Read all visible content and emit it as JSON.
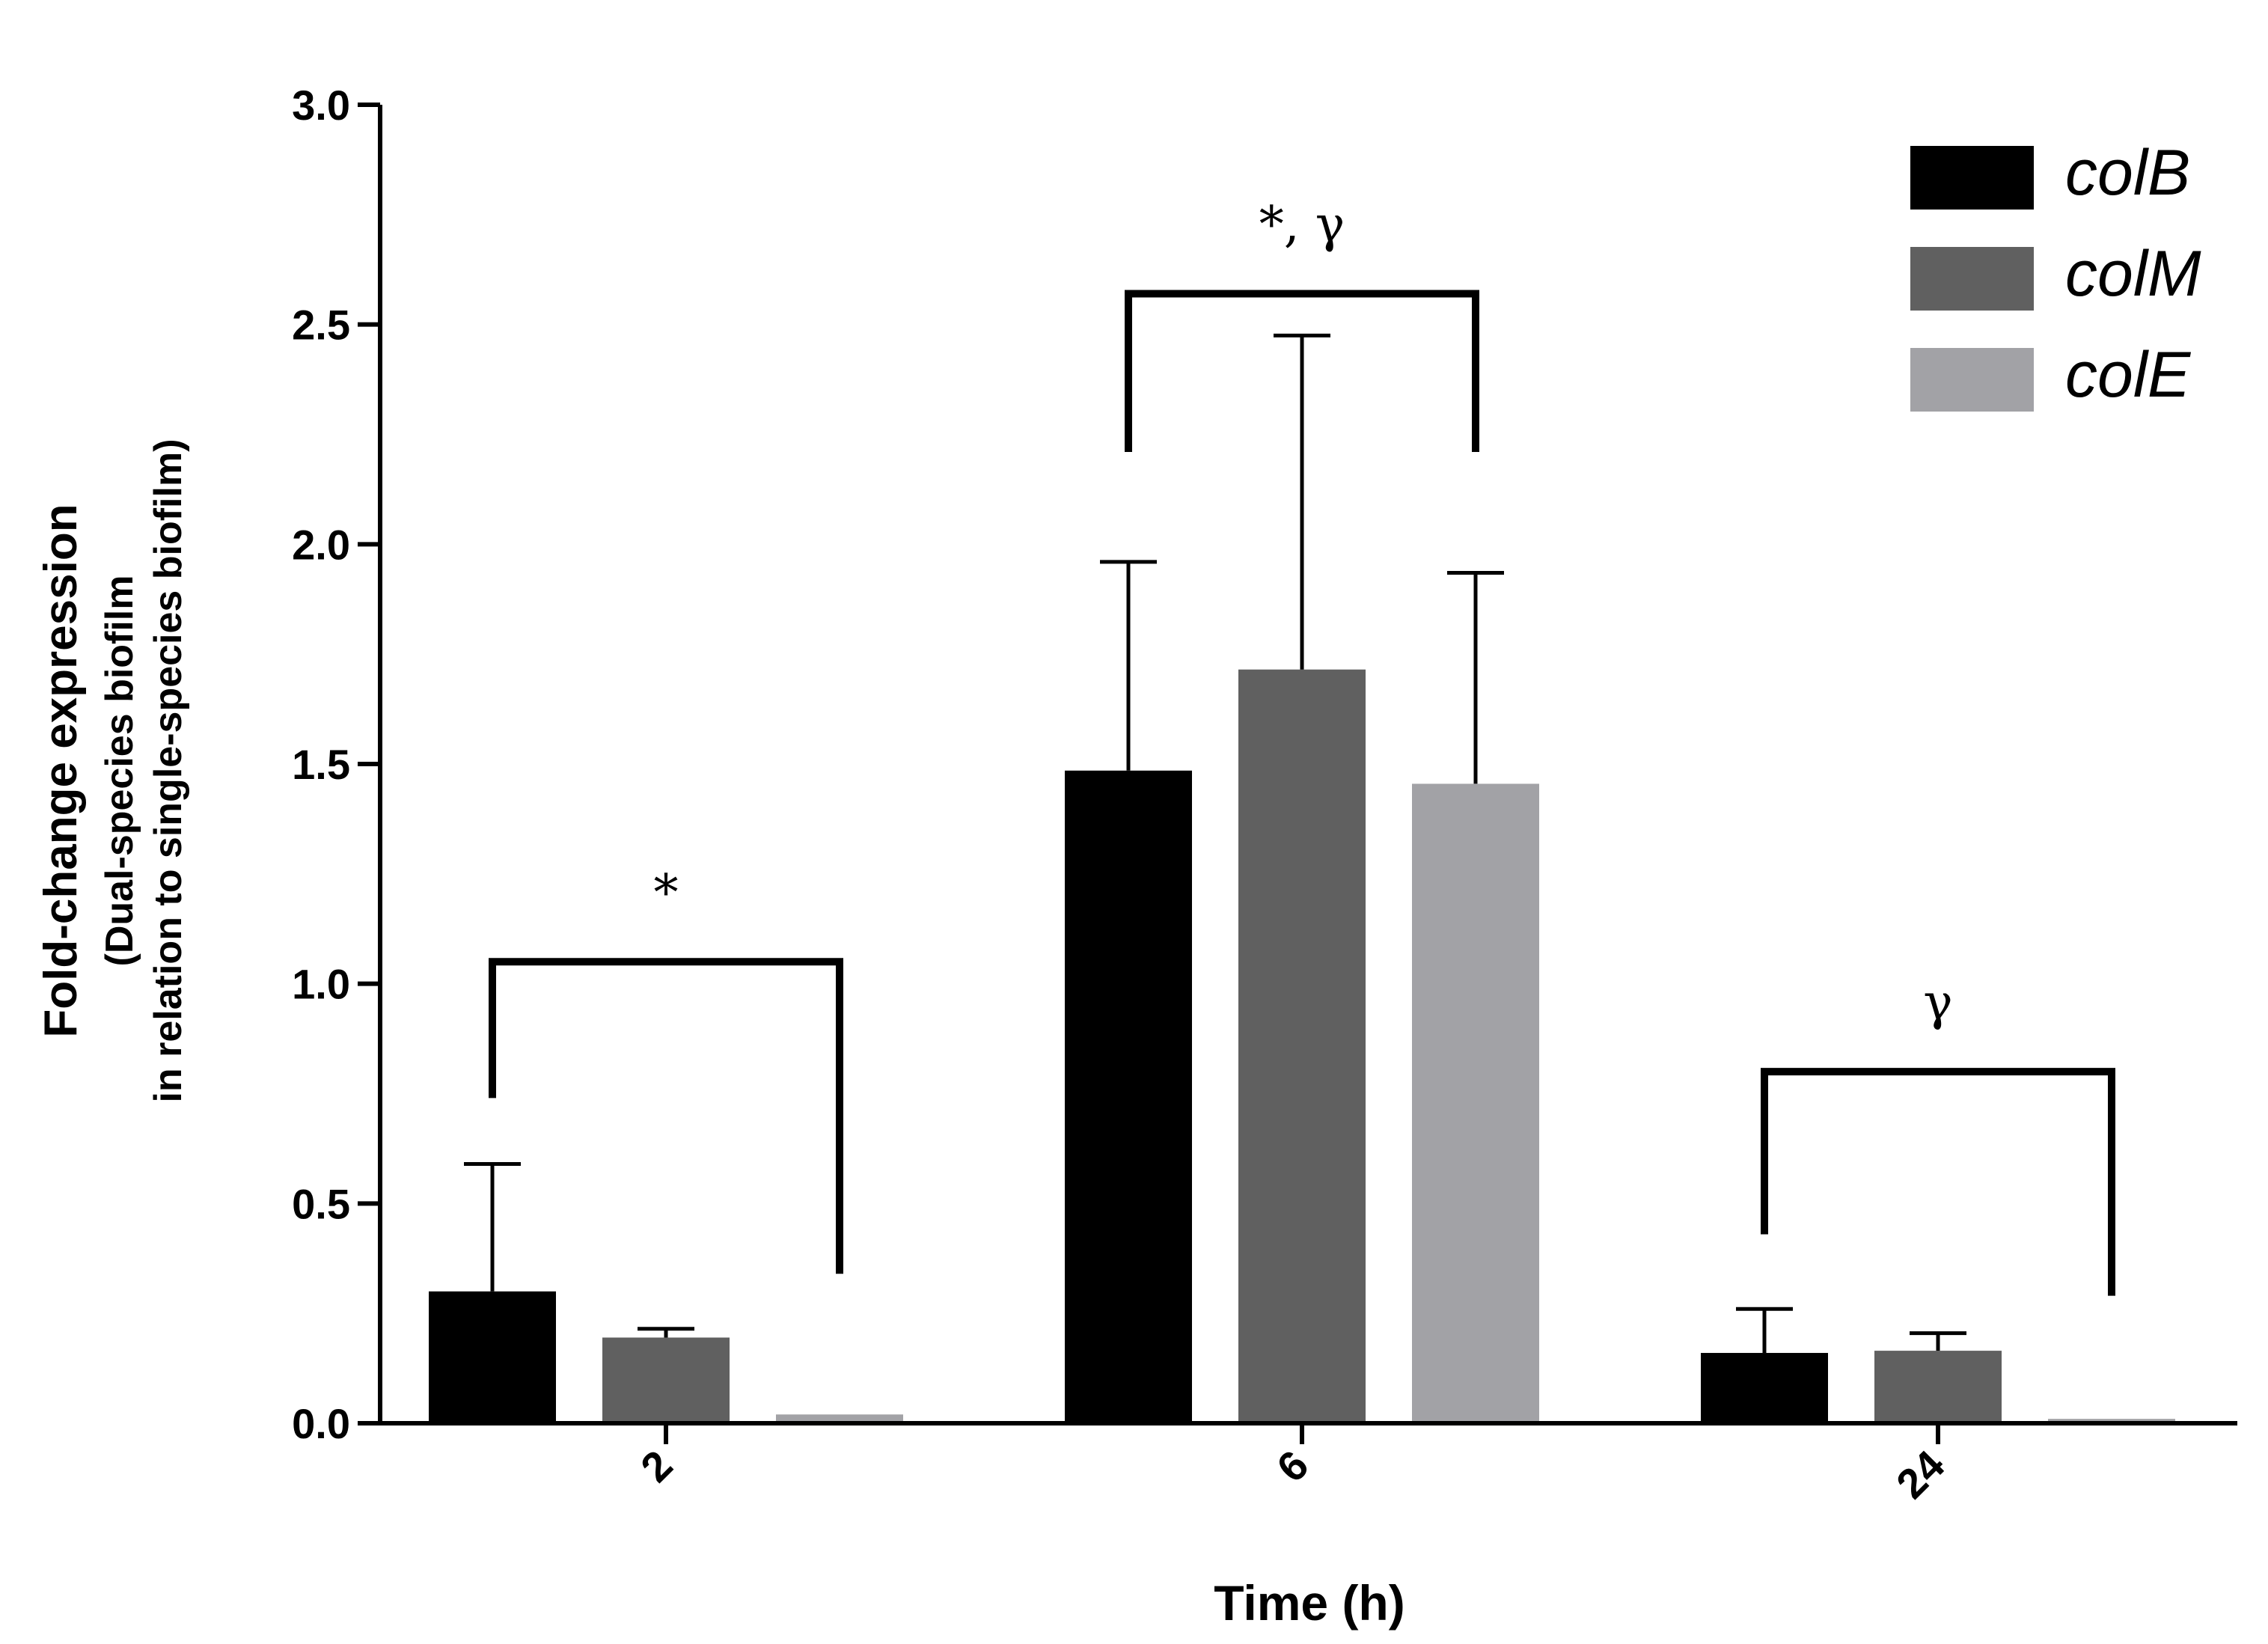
{
  "chart_data": {
    "type": "bar",
    "title": "",
    "xlabel": "Time (h)",
    "ylabel": "Fold-change expression",
    "ylabel_sub1": "(Dual-species biofilm",
    "ylabel_sub2": "in relation to single-species biofilm)",
    "categories": [
      "2",
      "6",
      "24"
    ],
    "ylim": [
      0,
      3.0
    ],
    "yticks": [
      "0.0",
      "0.5",
      "1.0",
      "1.5",
      "2.0",
      "2.5",
      "3.0"
    ],
    "legend_position": "top-right",
    "grid": false,
    "series": [
      {
        "name": "colB",
        "color": "#000000",
        "values": [
          0.3,
          1.485,
          0.16
        ],
        "errors": [
          0.29,
          0.475,
          0.1
        ]
      },
      {
        "name": "colM",
        "color": "#606060",
        "values": [
          0.195,
          1.715,
          0.165
        ],
        "errors": [
          0.02,
          0.76,
          0.04
        ]
      },
      {
        "name": "colE",
        "color": "#a2a2a6",
        "values": [
          0.02,
          1.455,
          0.01
        ],
        "errors": [
          0,
          0.48,
          0
        ]
      }
    ],
    "annotations": [
      {
        "category": "2",
        "label": "*",
        "bracket_level": 1.05
      },
      {
        "category": "6",
        "label": "*, γ",
        "bracket_level": 2.57
      },
      {
        "category": "24",
        "label": "γ",
        "bracket_level": 0.8
      }
    ]
  }
}
